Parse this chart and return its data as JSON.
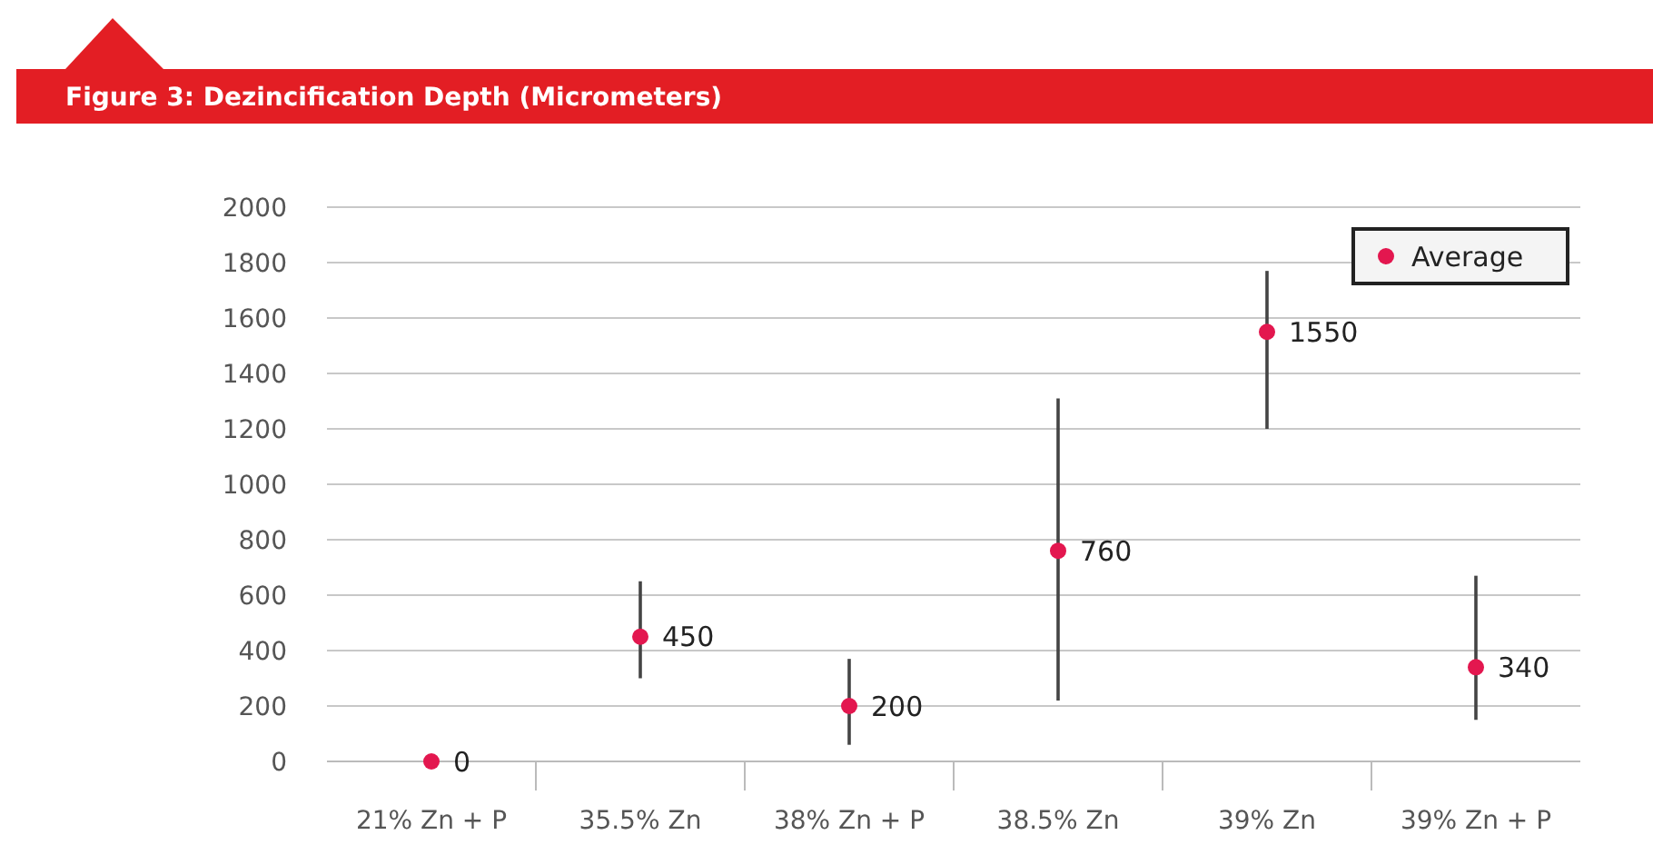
{
  "chart_data": {
    "type": "scatter",
    "title": "Figure 3: Dezincification Depth (Micrometers)",
    "categories": [
      "21% Zn + P",
      "35.5% Zn",
      "38% Zn + P",
      "38.5% Zn",
      "39% Zn",
      "39% Zn + P"
    ],
    "series": [
      {
        "name": "Average",
        "color": "#e3174f",
        "values": [
          0,
          450,
          200,
          760,
          1550,
          340
        ],
        "errors": [
          null,
          [
            300,
            650
          ],
          [
            60,
            370
          ],
          [
            220,
            1310
          ],
          [
            1200,
            1770
          ],
          [
            150,
            670
          ]
        ]
      }
    ],
    "ylim": [
      0,
      2000
    ],
    "yticks": [
      0,
      200,
      400,
      600,
      800,
      1000,
      1200,
      1400,
      1600,
      1800,
      2000
    ],
    "grid": "y",
    "legend": "top right",
    "marker": "circle",
    "data_labels": true
  }
}
